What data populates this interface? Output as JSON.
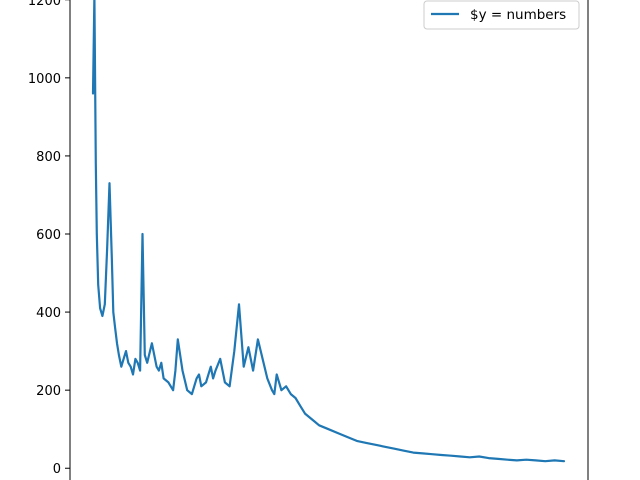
{
  "chart_data": {
    "type": "line",
    "title": "",
    "xlabel": "",
    "ylabel": "",
    "ylim": [
      -25,
      1225
    ],
    "yticks": [
      0,
      200,
      400,
      600,
      800,
      1000,
      1200
    ],
    "ytick_labels": [
      "0",
      "200",
      "400",
      "600",
      "800",
      "1000",
      "1200"
    ],
    "xlim": [
      0,
      1
    ],
    "grid": false,
    "legend_position": "top-right",
    "series": [
      {
        "name": "$y = numbers",
        "color": "#1f77b4",
        "x": [
          0.0,
          0.003,
          0.006,
          0.008,
          0.011,
          0.015,
          0.02,
          0.025,
          0.03,
          0.035,
          0.04,
          0.043,
          0.047,
          0.051,
          0.055,
          0.06,
          0.065,
          0.07,
          0.075,
          0.08,
          0.085,
          0.09,
          0.095,
          0.1,
          0.105,
          0.11,
          0.115,
          0.125,
          0.135,
          0.14,
          0.145,
          0.15,
          0.16,
          0.17,
          0.175,
          0.18,
          0.19,
          0.2,
          0.21,
          0.22,
          0.225,
          0.23,
          0.24,
          0.25,
          0.255,
          0.26,
          0.27,
          0.28,
          0.29,
          0.3,
          0.31,
          0.32,
          0.33,
          0.34,
          0.35,
          0.37,
          0.38,
          0.385,
          0.39,
          0.4,
          0.41,
          0.42,
          0.43,
          0.44,
          0.445,
          0.45,
          0.46,
          0.47,
          0.48,
          0.5,
          0.52,
          0.54,
          0.56,
          0.58,
          0.6,
          0.62,
          0.64,
          0.66,
          0.68,
          0.7,
          0.72,
          0.74,
          0.76,
          0.78,
          0.8,
          0.82,
          0.84,
          0.86,
          0.88,
          0.9,
          0.92,
          0.94,
          0.96,
          0.98,
          1.0
        ],
        "values": [
          960,
          1210,
          780,
          600,
          470,
          410,
          390,
          420,
          560,
          730,
          540,
          400,
          360,
          320,
          290,
          260,
          280,
          300,
          270,
          260,
          240,
          280,
          270,
          250,
          600,
          290,
          270,
          320,
          260,
          250,
          270,
          230,
          220,
          200,
          250,
          330,
          250,
          200,
          190,
          230,
          240,
          210,
          220,
          260,
          230,
          250,
          280,
          220,
          210,
          300,
          420,
          260,
          310,
          250,
          330,
          230,
          200,
          190,
          240,
          200,
          210,
          190,
          180,
          160,
          150,
          140,
          130,
          120,
          110,
          100,
          90,
          80,
          70,
          65,
          60,
          55,
          50,
          45,
          40,
          38,
          36,
          34,
          32,
          30,
          28,
          30,
          26,
          24,
          22,
          20,
          22,
          20,
          18,
          20,
          18
        ]
      }
    ]
  }
}
